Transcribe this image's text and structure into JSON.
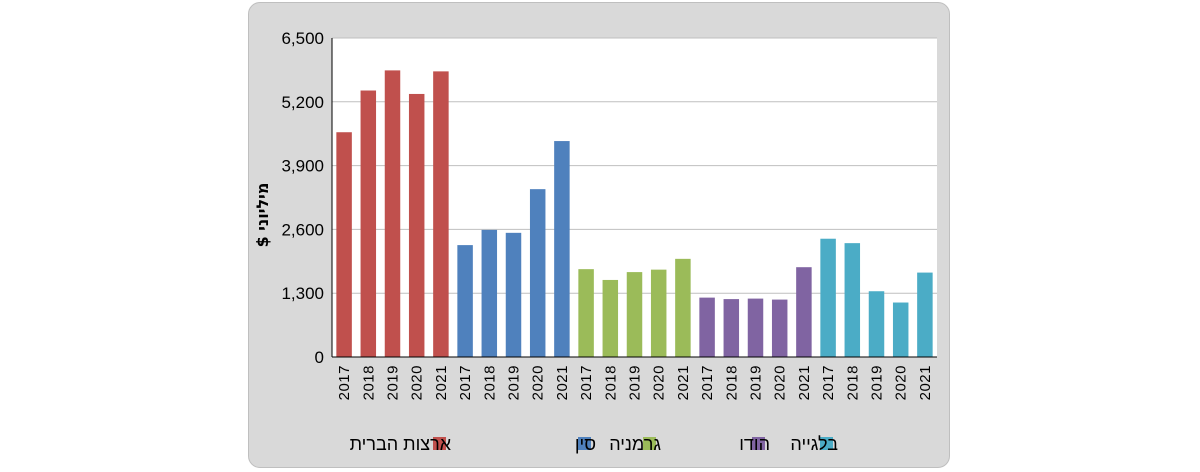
{
  "chart_data": {
    "type": "bar",
    "ylabel": "מיליוני $",
    "ylim": [
      0,
      6500
    ],
    "yticks": [
      0,
      1300,
      2600,
      3900,
      5200,
      6500
    ],
    "ytick_labels": [
      "0",
      "1,300",
      "2,600",
      "3,900",
      "5,200",
      "6,500"
    ],
    "grid": true,
    "legend_position": "bottom",
    "categories": [
      "2017",
      "2018",
      "2019",
      "2020",
      "2021"
    ],
    "series": [
      {
        "name": "ארצות הברית",
        "color": "#c0504d",
        "values": [
          4580,
          5430,
          5840,
          5360,
          5820
        ]
      },
      {
        "name": "סין",
        "color": "#4f81bd",
        "values": [
          2280,
          2590,
          2530,
          3420,
          4400
        ]
      },
      {
        "name": "גרמניה",
        "color": "#9bbb59",
        "values": [
          1790,
          1570,
          1730,
          1780,
          2000
        ]
      },
      {
        "name": "הודו",
        "color": "#8064a2",
        "values": [
          1210,
          1180,
          1190,
          1170,
          1830
        ]
      },
      {
        "name": "בלגייה",
        "color": "#4bacc6",
        "values": [
          2410,
          2320,
          1340,
          1110,
          1720
        ]
      }
    ]
  }
}
